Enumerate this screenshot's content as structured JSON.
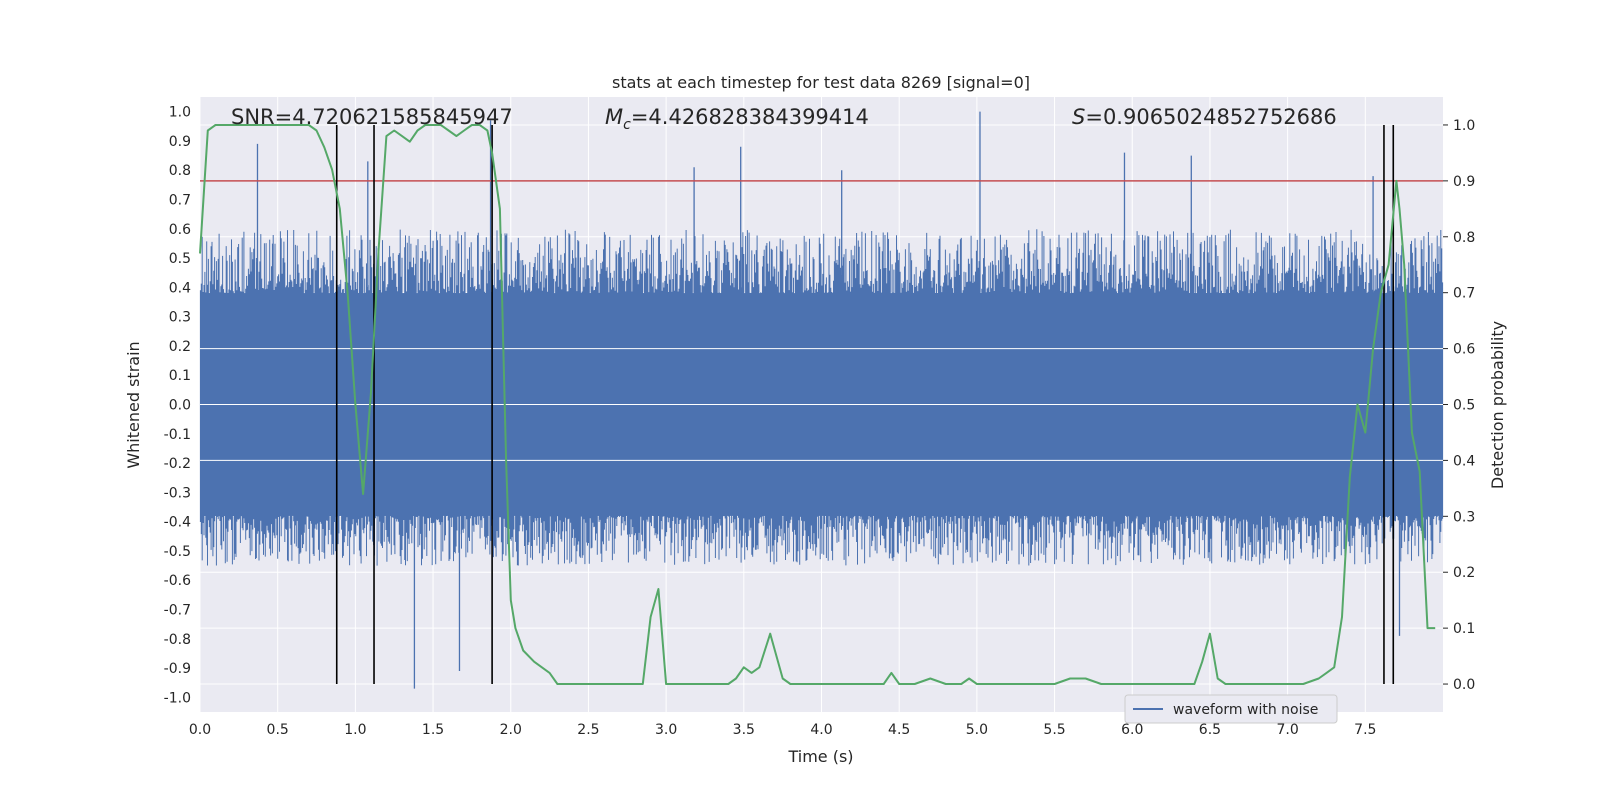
{
  "chart_data": {
    "type": "line",
    "title": "stats at each timestep for test data 8269 [signal=0]",
    "xlabel": "Time (s)",
    "ylabel_left": "Whitened strain",
    "ylabel_right": "Detection probability",
    "xlim": [
      0.0,
      8.0
    ],
    "ylim_left": [
      -1.05,
      1.05
    ],
    "ylim_right": [
      -0.05,
      1.05
    ],
    "x_ticks": [
      0.0,
      0.5,
      1.0,
      1.5,
      2.0,
      2.5,
      3.0,
      3.5,
      4.0,
      4.5,
      5.0,
      5.5,
      6.0,
      6.5,
      7.0,
      7.5
    ],
    "x_tick_labels": [
      "0.0",
      "0.5",
      "1.0",
      "1.5",
      "2.0",
      "2.5",
      "3.0",
      "3.5",
      "4.0",
      "4.5",
      "5.0",
      "5.5",
      "6.0",
      "6.5",
      "7.0",
      "7.5"
    ],
    "y_left_ticks": [
      1.0,
      0.9,
      0.8,
      0.7,
      0.6,
      0.5,
      0.4,
      0.3,
      0.2,
      0.1,
      0.0,
      -0.1,
      -0.2,
      -0.3,
      -0.4,
      -0.5,
      -0.6,
      -0.7,
      -0.8,
      -0.9,
      -1.0
    ],
    "y_left_tick_labels": [
      "1.0",
      "0.9",
      "0.8",
      "0.7",
      "0.6",
      "0.5",
      "0.4",
      "0.3",
      "0.2",
      "0.1",
      "0.0",
      "-0.1",
      "-0.2",
      "-0.3",
      "-0.4",
      "-0.5",
      "-0.6",
      "-0.7",
      "-0.8",
      "-0.9",
      "-1.0"
    ],
    "y_right_ticks": [
      1.0,
      0.9,
      0.8,
      0.7,
      0.6,
      0.5,
      0.4,
      0.3,
      0.2,
      0.1,
      0.0
    ],
    "y_right_tick_labels": [
      "1.0",
      "0.9",
      "0.8",
      "0.7",
      "0.6",
      "0.5",
      "0.4",
      "0.3",
      "0.2",
      "0.1",
      "0.0"
    ],
    "annotations": {
      "snr_text": "SNR=4.720621585845947",
      "mc_symbol": "M",
      "mc_subscript": "c",
      "mc_value": "=4.426828384399414",
      "s_symbol": "S",
      "s_value": "=0.9065024852752686"
    },
    "threshold": {
      "value": 0.9,
      "axis": "right",
      "color": "#c44e52"
    },
    "detection_markers_x": [
      0.88,
      1.12,
      1.88,
      7.62,
      7.68
    ],
    "waveform": {
      "name": "waveform with noise",
      "color": "#4c72b0",
      "core_amplitude": 0.38,
      "typical_extent": [
        -0.55,
        0.6
      ],
      "peak_spikes": [
        {
          "x": 0.37,
          "y": 0.89
        },
        {
          "x": 1.08,
          "y": 0.83
        },
        {
          "x": 1.38,
          "y": -0.97
        },
        {
          "x": 1.67,
          "y": -0.91
        },
        {
          "x": 1.87,
          "y": 0.97
        },
        {
          "x": 3.18,
          "y": 0.81
        },
        {
          "x": 3.48,
          "y": 0.88
        },
        {
          "x": 4.13,
          "y": 0.8
        },
        {
          "x": 5.02,
          "y": 1.0
        },
        {
          "x": 5.95,
          "y": 0.86
        },
        {
          "x": 6.38,
          "y": 0.85
        },
        {
          "x": 7.55,
          "y": 0.78
        },
        {
          "x": 7.72,
          "y": -0.79
        }
      ]
    },
    "detection_probability": {
      "name": "detection probability",
      "color": "#55a868",
      "x": [
        0.0,
        0.05,
        0.1,
        0.15,
        0.2,
        0.3,
        0.4,
        0.5,
        0.6,
        0.7,
        0.75,
        0.8,
        0.85,
        0.9,
        0.95,
        1.0,
        1.05,
        1.1,
        1.15,
        1.2,
        1.25,
        1.3,
        1.35,
        1.4,
        1.45,
        1.5,
        1.55,
        1.6,
        1.65,
        1.7,
        1.75,
        1.8,
        1.85,
        1.88,
        1.93,
        1.97,
        2.0,
        2.03,
        2.08,
        2.15,
        2.25,
        2.3,
        2.4,
        2.5,
        2.6,
        2.7,
        2.8,
        2.85,
        2.9,
        2.95,
        3.0,
        3.1,
        3.2,
        3.3,
        3.4,
        3.45,
        3.5,
        3.55,
        3.6,
        3.67,
        3.75,
        3.8,
        3.9,
        4.0,
        4.1,
        4.2,
        4.3,
        4.35,
        4.4,
        4.45,
        4.5,
        4.55,
        4.6,
        4.7,
        4.8,
        4.85,
        4.9,
        4.95,
        5.0,
        5.1,
        5.2,
        5.3,
        5.4,
        5.5,
        5.6,
        5.7,
        5.8,
        5.9,
        6.0,
        6.1,
        6.2,
        6.3,
        6.4,
        6.45,
        6.5,
        6.55,
        6.6,
        6.7,
        6.8,
        6.9,
        7.0,
        7.1,
        7.2,
        7.25,
        7.3,
        7.35,
        7.4,
        7.45,
        7.5,
        7.55,
        7.6,
        7.65,
        7.7,
        7.72,
        7.75,
        7.8,
        7.85,
        7.9,
        7.95
      ],
      "y": [
        0.77,
        0.99,
        1.0,
        1.0,
        1.0,
        1.0,
        1.0,
        1.0,
        1.0,
        1.0,
        0.99,
        0.96,
        0.92,
        0.85,
        0.7,
        0.5,
        0.34,
        0.52,
        0.78,
        0.98,
        0.99,
        0.98,
        0.97,
        0.99,
        1.0,
        1.0,
        1.0,
        0.99,
        0.98,
        0.99,
        1.0,
        1.0,
        0.99,
        0.95,
        0.85,
        0.4,
        0.15,
        0.1,
        0.06,
        0.04,
        0.02,
        0.0,
        0.0,
        0.0,
        0.0,
        0.0,
        0.0,
        0.0,
        0.12,
        0.17,
        0.0,
        0.0,
        0.0,
        0.0,
        0.0,
        0.01,
        0.03,
        0.02,
        0.03,
        0.09,
        0.01,
        0.0,
        0.0,
        0.0,
        0.0,
        0.0,
        0.0,
        0.0,
        0.0,
        0.02,
        0.0,
        0.0,
        0.0,
        0.01,
        0.0,
        0.0,
        0.0,
        0.01,
        0.0,
        0.0,
        0.0,
        0.0,
        0.0,
        0.0,
        0.01,
        0.01,
        0.0,
        0.0,
        0.0,
        0.0,
        0.0,
        0.0,
        0.0,
        0.04,
        0.09,
        0.01,
        0.0,
        0.0,
        0.0,
        0.0,
        0.0,
        0.0,
        0.01,
        0.02,
        0.03,
        0.12,
        0.37,
        0.5,
        0.45,
        0.6,
        0.7,
        0.75,
        0.9,
        0.85,
        0.75,
        0.45,
        0.38,
        0.1,
        0.1
      ]
    },
    "legend": {
      "entries": [
        "waveform with noise"
      ],
      "placement": "lower-right"
    }
  }
}
